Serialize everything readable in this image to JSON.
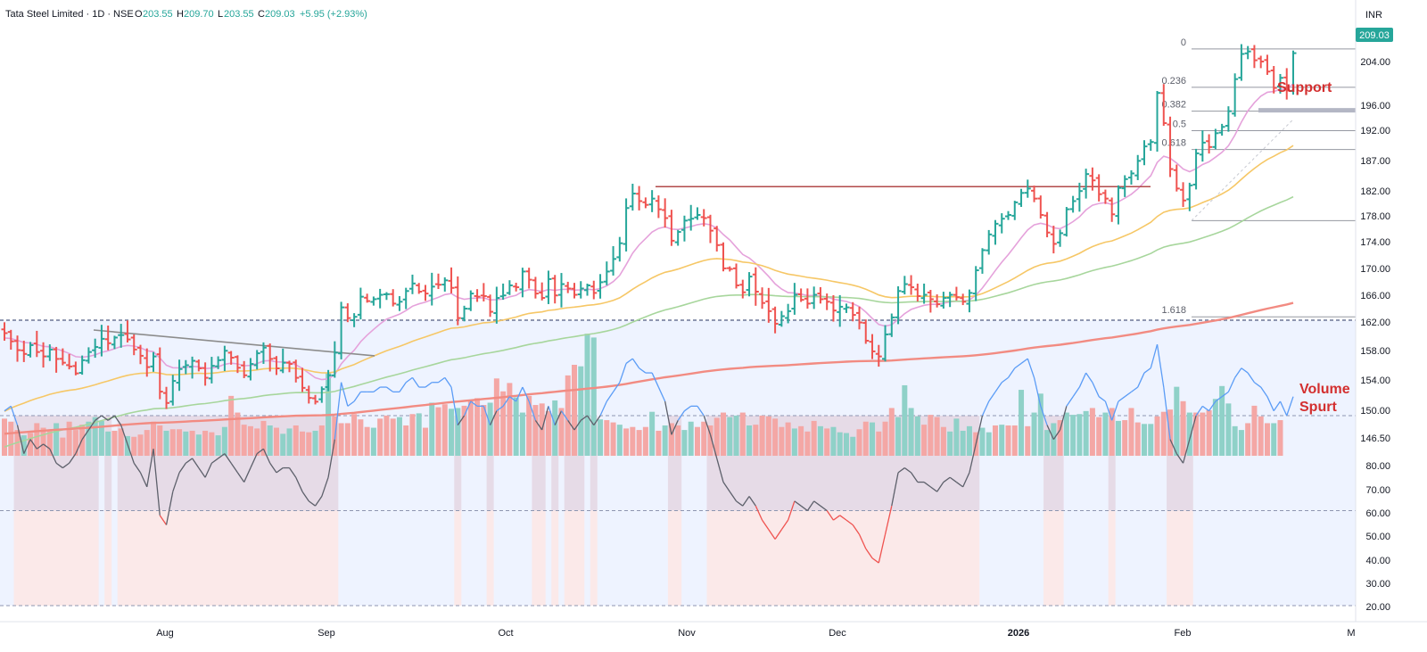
{
  "header": {
    "symbol": "Tata Steel Limited · 1D · NSE",
    "open_label": "O",
    "open": "203.55",
    "high_label": "H",
    "high": "209.70",
    "low_label": "L",
    "low": "203.55",
    "close_label": "C",
    "close": "209.03",
    "change": "+5.95 (+2.93%)"
  },
  "currency": "INR",
  "last_price": "209.03",
  "annotations": {
    "support": "Support",
    "volume_1": "Volume",
    "volume_2": "Spurt"
  },
  "colors": {
    "up": "#26a69a",
    "down": "#ef5350",
    "vol_up": "#8fd1c8",
    "vol_down": "#f4a7a5",
    "ma_fast": "#e5a2db",
    "ma_50": "#f6c766",
    "ma_100": "#a7d69c",
    "ma_200": "#f28b82",
    "rsi": "#5d606b",
    "resistance": "#b24a4a",
    "trendline": "#8c8c8c"
  },
  "chart_data": [
    {
      "type": "ohlc",
      "price_axis": {
        "ticks": [
          "209.03",
          "204.00",
          "196.00",
          "192.00",
          "187.00",
          "182.00",
          "178.00",
          "174.00",
          "170.00",
          "166.00",
          "162.00",
          "158.00",
          "154.00",
          "150.00",
          "146.50"
        ],
        "ylim": [
          145,
          212
        ]
      },
      "x_axis": {
        "ticks": [
          "Aug",
          "Sep",
          "Oct",
          "Nov",
          "Dec",
          "2026",
          "Feb",
          "M"
        ]
      },
      "fibonacci": [
        {
          "label": "0",
          "value": 209.7
        },
        {
          "label": "0.236",
          "value": 203.6
        },
        {
          "label": "0.382",
          "value": 199.8
        },
        {
          "label": "0.5",
          "value": 196.7
        },
        {
          "label": "0.618",
          "value": 193.7
        },
        {
          "label": "1.618",
          "value": 167.1
        }
      ],
      "resistance_level": 187.8,
      "close_series": [
        164.5,
        163.2,
        161.8,
        161.2,
        162.6,
        161.5,
        160.8,
        161.9,
        160.4,
        159.8,
        159.2,
        158.1,
        160.2,
        161.5,
        162.3,
        163.6,
        162.9,
        163.8,
        164.2,
        163.5,
        161.9,
        160.9,
        159.1,
        160.8,
        155.2,
        153.4,
        156.9,
        158.8,
        159.4,
        160.1,
        158.9,
        157.4,
        159.3,
        160.2,
        161.7,
        160.6,
        159.0,
        157.8,
        159.6,
        161.3,
        162.2,
        160.4,
        158.9,
        159.8,
        159.6,
        157.4,
        155.8,
        154.2,
        153.6,
        155.6,
        157.8,
        161.4,
        168.6,
        166.9,
        167.1,
        170.3,
        169.6,
        169.9,
        170.6,
        170.7,
        169.2,
        169.5,
        171.2,
        172.4,
        171.1,
        170.8,
        171.9,
        172.2,
        172.9,
        171.7,
        166.9,
        168.4,
        170.8,
        170.3,
        170.4,
        167.9,
        170.1,
        170.5,
        172.1,
        171.8,
        174.3,
        173.0,
        170.8,
        170.1,
        173.1,
        170.5,
        172.3,
        171.6,
        170.6,
        171.6,
        172.1,
        170.9,
        172.6,
        174.3,
        176.3,
        178.8,
        184.4,
        186.7,
        185.5,
        184.9,
        185.9,
        184.2,
        182.8,
        179.2,
        180.6,
        182.4,
        182.7,
        183.3,
        182.8,
        180.8,
        178.5,
        174.8,
        174.7,
        172.1,
        171.0,
        173.5,
        171.1,
        169.3,
        168.0,
        166.0,
        167.2,
        168.0,
        170.6,
        169.8,
        169.2,
        170.6,
        169.9,
        169.5,
        168.1,
        168.7,
        168.6,
        167.4,
        166.2,
        163.3,
        161.6,
        160.8,
        164.3,
        167.0,
        171.2,
        172.3,
        171.8,
        170.4,
        170.6,
        169.9,
        169.1,
        170.1,
        170.6,
        170.2,
        169.5,
        170.9,
        174.5,
        177.7,
        180.2,
        181.9,
        182.7,
        183.3,
        185.3,
        186.8,
        187.5,
        185.9,
        183.3,
        180.5,
        178.7,
        180.4,
        184.2,
        185.5,
        187.1,
        189.8,
        188.8,
        186.6,
        185.9,
        183.4,
        187.6,
        189.0,
        189.9,
        191.9,
        194.2,
        194.9,
        202.7,
        197.9,
        190.6,
        187.5,
        185.6,
        188.0,
        193.1,
        194.8,
        194.1,
        196.3,
        197.3,
        199.8,
        204.9,
        208.9,
        209.3,
        207.9,
        207.7,
        206.1,
        203.5,
        205.1,
        203.1,
        209.03
      ],
      "volume": [
        {
          "v": 49,
          "up": false
        },
        {
          "v": 45,
          "up": false
        },
        {
          "v": 34,
          "up": false
        },
        {
          "v": 27,
          "up": true
        },
        {
          "v": 30,
          "up": false
        },
        {
          "v": 43,
          "up": false
        },
        {
          "v": 37,
          "up": false
        },
        {
          "v": 33,
          "up": false
        },
        {
          "v": 43,
          "up": true
        },
        {
          "v": 24,
          "up": false
        },
        {
          "v": 45,
          "up": false
        },
        {
          "v": 34,
          "up": false
        },
        {
          "v": 41,
          "up": false
        },
        {
          "v": 45,
          "up": true
        },
        {
          "v": 51,
          "up": true
        },
        {
          "v": 46,
          "up": true
        },
        {
          "v": 32,
          "up": true
        },
        {
          "v": 33,
          "up": false
        },
        {
          "v": 36,
          "up": false
        },
        {
          "v": 26,
          "up": true
        },
        {
          "v": 25,
          "up": false
        },
        {
          "v": 28,
          "up": false
        },
        {
          "v": 34,
          "up": false
        },
        {
          "v": 45,
          "up": false
        },
        {
          "v": 40,
          "up": false
        },
        {
          "v": 33,
          "up": true
        },
        {
          "v": 35,
          "up": false
        },
        {
          "v": 35,
          "up": false
        },
        {
          "v": 32,
          "up": true
        },
        {
          "v": 33,
          "up": false
        },
        {
          "v": 28,
          "up": true
        },
        {
          "v": 33,
          "up": false
        },
        {
          "v": 31,
          "up": false
        },
        {
          "v": 27,
          "up": true
        },
        {
          "v": 38,
          "up": true
        },
        {
          "v": 79,
          "up": false
        },
        {
          "v": 57,
          "up": false
        },
        {
          "v": 41,
          "up": false
        },
        {
          "v": 39,
          "up": false
        },
        {
          "v": 36,
          "up": false
        },
        {
          "v": 46,
          "up": false
        },
        {
          "v": 40,
          "up": true
        },
        {
          "v": 37,
          "up": false
        },
        {
          "v": 29,
          "up": true
        },
        {
          "v": 36,
          "up": true
        },
        {
          "v": 40,
          "up": false
        },
        {
          "v": 32,
          "up": false
        },
        {
          "v": 31,
          "up": false
        },
        {
          "v": 33,
          "up": true
        },
        {
          "v": 40,
          "up": false
        },
        {
          "v": 109,
          "up": true
        },
        {
          "v": 52,
          "up": false
        },
        {
          "v": 43,
          "up": false
        },
        {
          "v": 43,
          "up": false
        },
        {
          "v": 55,
          "up": false
        },
        {
          "v": 48,
          "up": false
        },
        {
          "v": 38,
          "up": false
        },
        {
          "v": 37,
          "up": true
        },
        {
          "v": 49,
          "up": false
        },
        {
          "v": 53,
          "up": false
        },
        {
          "v": 49,
          "up": false
        },
        {
          "v": 51,
          "up": true
        },
        {
          "v": 40,
          "up": false
        },
        {
          "v": 55,
          "up": false
        },
        {
          "v": 56,
          "up": true
        },
        {
          "v": 37,
          "up": false
        },
        {
          "v": 70,
          "up": true
        },
        {
          "v": 64,
          "up": false
        },
        {
          "v": 68,
          "up": false
        },
        {
          "v": 62,
          "up": true
        },
        {
          "v": 63,
          "up": true
        },
        {
          "v": 66,
          "up": false
        },
        {
          "v": 74,
          "up": false
        },
        {
          "v": 76,
          "up": false
        },
        {
          "v": 67,
          "up": false
        },
        {
          "v": 70,
          "up": true
        },
        {
          "v": 102,
          "up": false
        },
        {
          "v": 85,
          "up": false
        },
        {
          "v": 96,
          "up": false
        },
        {
          "v": 77,
          "up": true
        },
        {
          "v": 57,
          "up": true
        },
        {
          "v": 79,
          "up": false
        },
        {
          "v": 67,
          "up": false
        },
        {
          "v": 69,
          "up": false
        },
        {
          "v": 59,
          "up": false
        },
        {
          "v": 73,
          "up": true
        },
        {
          "v": 63,
          "up": false
        },
        {
          "v": 106,
          "up": false
        },
        {
          "v": 120,
          "up": false
        },
        {
          "v": 118,
          "up": true
        },
        {
          "v": 161,
          "up": true
        },
        {
          "v": 156,
          "up": true
        },
        {
          "v": 48,
          "up": true
        },
        {
          "v": 47,
          "up": false
        },
        {
          "v": 44,
          "up": false
        },
        {
          "v": 41,
          "up": true
        },
        {
          "v": 36,
          "up": false
        },
        {
          "v": 38,
          "up": false
        },
        {
          "v": 34,
          "up": false
        },
        {
          "v": 38,
          "up": false
        },
        {
          "v": 58,
          "up": true
        },
        {
          "v": 33,
          "up": false
        },
        {
          "v": 40,
          "up": true
        },
        {
          "v": 43,
          "up": false
        },
        {
          "v": 40,
          "up": false
        },
        {
          "v": 34,
          "up": true
        },
        {
          "v": 45,
          "up": true
        },
        {
          "v": 38,
          "up": false
        },
        {
          "v": 45,
          "up": false
        },
        {
          "v": 40,
          "up": false
        },
        {
          "v": 50,
          "up": false
        },
        {
          "v": 57,
          "up": false
        },
        {
          "v": 51,
          "up": true
        },
        {
          "v": 53,
          "up": true
        },
        {
          "v": 57,
          "up": false
        },
        {
          "v": 40,
          "up": true
        },
        {
          "v": 41,
          "up": false
        },
        {
          "v": 53,
          "up": false
        },
        {
          "v": 52,
          "up": false
        },
        {
          "v": 49,
          "up": false
        },
        {
          "v": 38,
          "up": false
        },
        {
          "v": 44,
          "up": false
        },
        {
          "v": 36,
          "up": true
        },
        {
          "v": 39,
          "up": false
        },
        {
          "v": 32,
          "up": false
        },
        {
          "v": 46,
          "up": false
        },
        {
          "v": 39,
          "up": true
        },
        {
          "v": 36,
          "up": false
        },
        {
          "v": 38,
          "up": true
        },
        {
          "v": 31,
          "up": true
        },
        {
          "v": 30,
          "up": true
        },
        {
          "v": 25,
          "up": true
        },
        {
          "v": 35,
          "up": false
        },
        {
          "v": 45,
          "up": false
        },
        {
          "v": 44,
          "up": true
        },
        {
          "v": 32,
          "up": false
        },
        {
          "v": 45,
          "up": false
        },
        {
          "v": 63,
          "up": false
        },
        {
          "v": 51,
          "up": true
        },
        {
          "v": 93,
          "up": true
        },
        {
          "v": 63,
          "up": true
        },
        {
          "v": 52,
          "up": true
        },
        {
          "v": 41,
          "up": false
        },
        {
          "v": 54,
          "up": false
        },
        {
          "v": 51,
          "up": false
        },
        {
          "v": 38,
          "up": false
        },
        {
          "v": 32,
          "up": true
        },
        {
          "v": 49,
          "up": true
        },
        {
          "v": 33,
          "up": true
        },
        {
          "v": 39,
          "up": true
        },
        {
          "v": 31,
          "up": false
        },
        {
          "v": 37,
          "up": true
        },
        {
          "v": 31,
          "up": true
        },
        {
          "v": 40,
          "up": false
        },
        {
          "v": 41,
          "up": true
        },
        {
          "v": 40,
          "up": false
        },
        {
          "v": 40,
          "up": false
        },
        {
          "v": 87,
          "up": true
        },
        {
          "v": 39,
          "up": false
        },
        {
          "v": 57,
          "up": true
        },
        {
          "v": 82,
          "up": true
        },
        {
          "v": 34,
          "up": true
        },
        {
          "v": 43,
          "up": true
        },
        {
          "v": 47,
          "up": false
        },
        {
          "v": 57,
          "up": true
        },
        {
          "v": 54,
          "up": true
        },
        {
          "v": 55,
          "up": true
        },
        {
          "v": 59,
          "up": true
        },
        {
          "v": 63,
          "up": false
        },
        {
          "v": 51,
          "up": false
        },
        {
          "v": 57,
          "up": true
        },
        {
          "v": 63,
          "up": false
        },
        {
          "v": 46,
          "up": true
        },
        {
          "v": 47,
          "up": false
        },
        {
          "v": 63,
          "up": false
        },
        {
          "v": 44,
          "up": false
        },
        {
          "v": 42,
          "up": true
        },
        {
          "v": 42,
          "up": true
        },
        {
          "v": 52,
          "up": false
        },
        {
          "v": 58,
          "up": false
        },
        {
          "v": 61,
          "up": false
        },
        {
          "v": 91,
          "up": true
        },
        {
          "v": 72,
          "up": false
        },
        {
          "v": 57,
          "up": true
        },
        {
          "v": 57,
          "up": false
        },
        {
          "v": 57,
          "up": false
        },
        {
          "v": 60,
          "up": false
        },
        {
          "v": 75,
          "up": true
        },
        {
          "v": 92,
          "up": true
        },
        {
          "v": 69,
          "up": true
        },
        {
          "v": 39,
          "up": true
        },
        {
          "v": 34,
          "up": true
        },
        {
          "v": 43,
          "up": false
        },
        {
          "v": 66,
          "up": false
        },
        {
          "v": 52,
          "up": false
        },
        {
          "v": 43,
          "up": false
        },
        {
          "v": 43,
          "up": true
        },
        {
          "v": 47,
          "up": false
        }
      ]
    },
    {
      "type": "line",
      "name": "RSI",
      "y_axis": {
        "ticks": [
          "80.00",
          "70.00",
          "60.00",
          "50.00",
          "40.00",
          "30.00",
          "20.00"
        ],
        "ylim": [
          18,
          82
        ]
      },
      "levels": [
        80,
        60,
        40,
        20
      ],
      "values": [
        61,
        62,
        58,
        52,
        55,
        53,
        54,
        53,
        50,
        49,
        50,
        52,
        55,
        57,
        59,
        60,
        59,
        60,
        58,
        54,
        50,
        48,
        45,
        53,
        39,
        37,
        44,
        48,
        50,
        51,
        49,
        47,
        50,
        51,
        52,
        50,
        48,
        46,
        49,
        52,
        53,
        50,
        48,
        49,
        49,
        47,
        44,
        42,
        41,
        43,
        47,
        55,
        67,
        62,
        63,
        65,
        65,
        65,
        66,
        66,
        65,
        65,
        67,
        68,
        66,
        66,
        67,
        67,
        68,
        66,
        58,
        60,
        63,
        62,
        62,
        58,
        61,
        62,
        64,
        63,
        66,
        63,
        59,
        57,
        62,
        58,
        61,
        59,
        57,
        59,
        60,
        58,
        60,
        63,
        65,
        67,
        71,
        72,
        70,
        69,
        69,
        66,
        63,
        56,
        59,
        61,
        62,
        62,
        60,
        56,
        51,
        46,
        44,
        42,
        41,
        43,
        41,
        38,
        36,
        34,
        36,
        38,
        42,
        41,
        40,
        42,
        41,
        40,
        38,
        39,
        38,
        37,
        35,
        32,
        30,
        29,
        35,
        41,
        48,
        49,
        48,
        46,
        46,
        45,
        44,
        46,
        47,
        46,
        45,
        48,
        54,
        60,
        63,
        65,
        67,
        68,
        70,
        71,
        72,
        68,
        62,
        58,
        55,
        57,
        62,
        64,
        66,
        69,
        67,
        64,
        63,
        59,
        63,
        64,
        65,
        66,
        69,
        70,
        75,
        66,
        55,
        52,
        50,
        55,
        60,
        62,
        61,
        63,
        64,
        65,
        68,
        70,
        69,
        67,
        66,
        64,
        61,
        63,
        60,
        64
      ]
    }
  ]
}
